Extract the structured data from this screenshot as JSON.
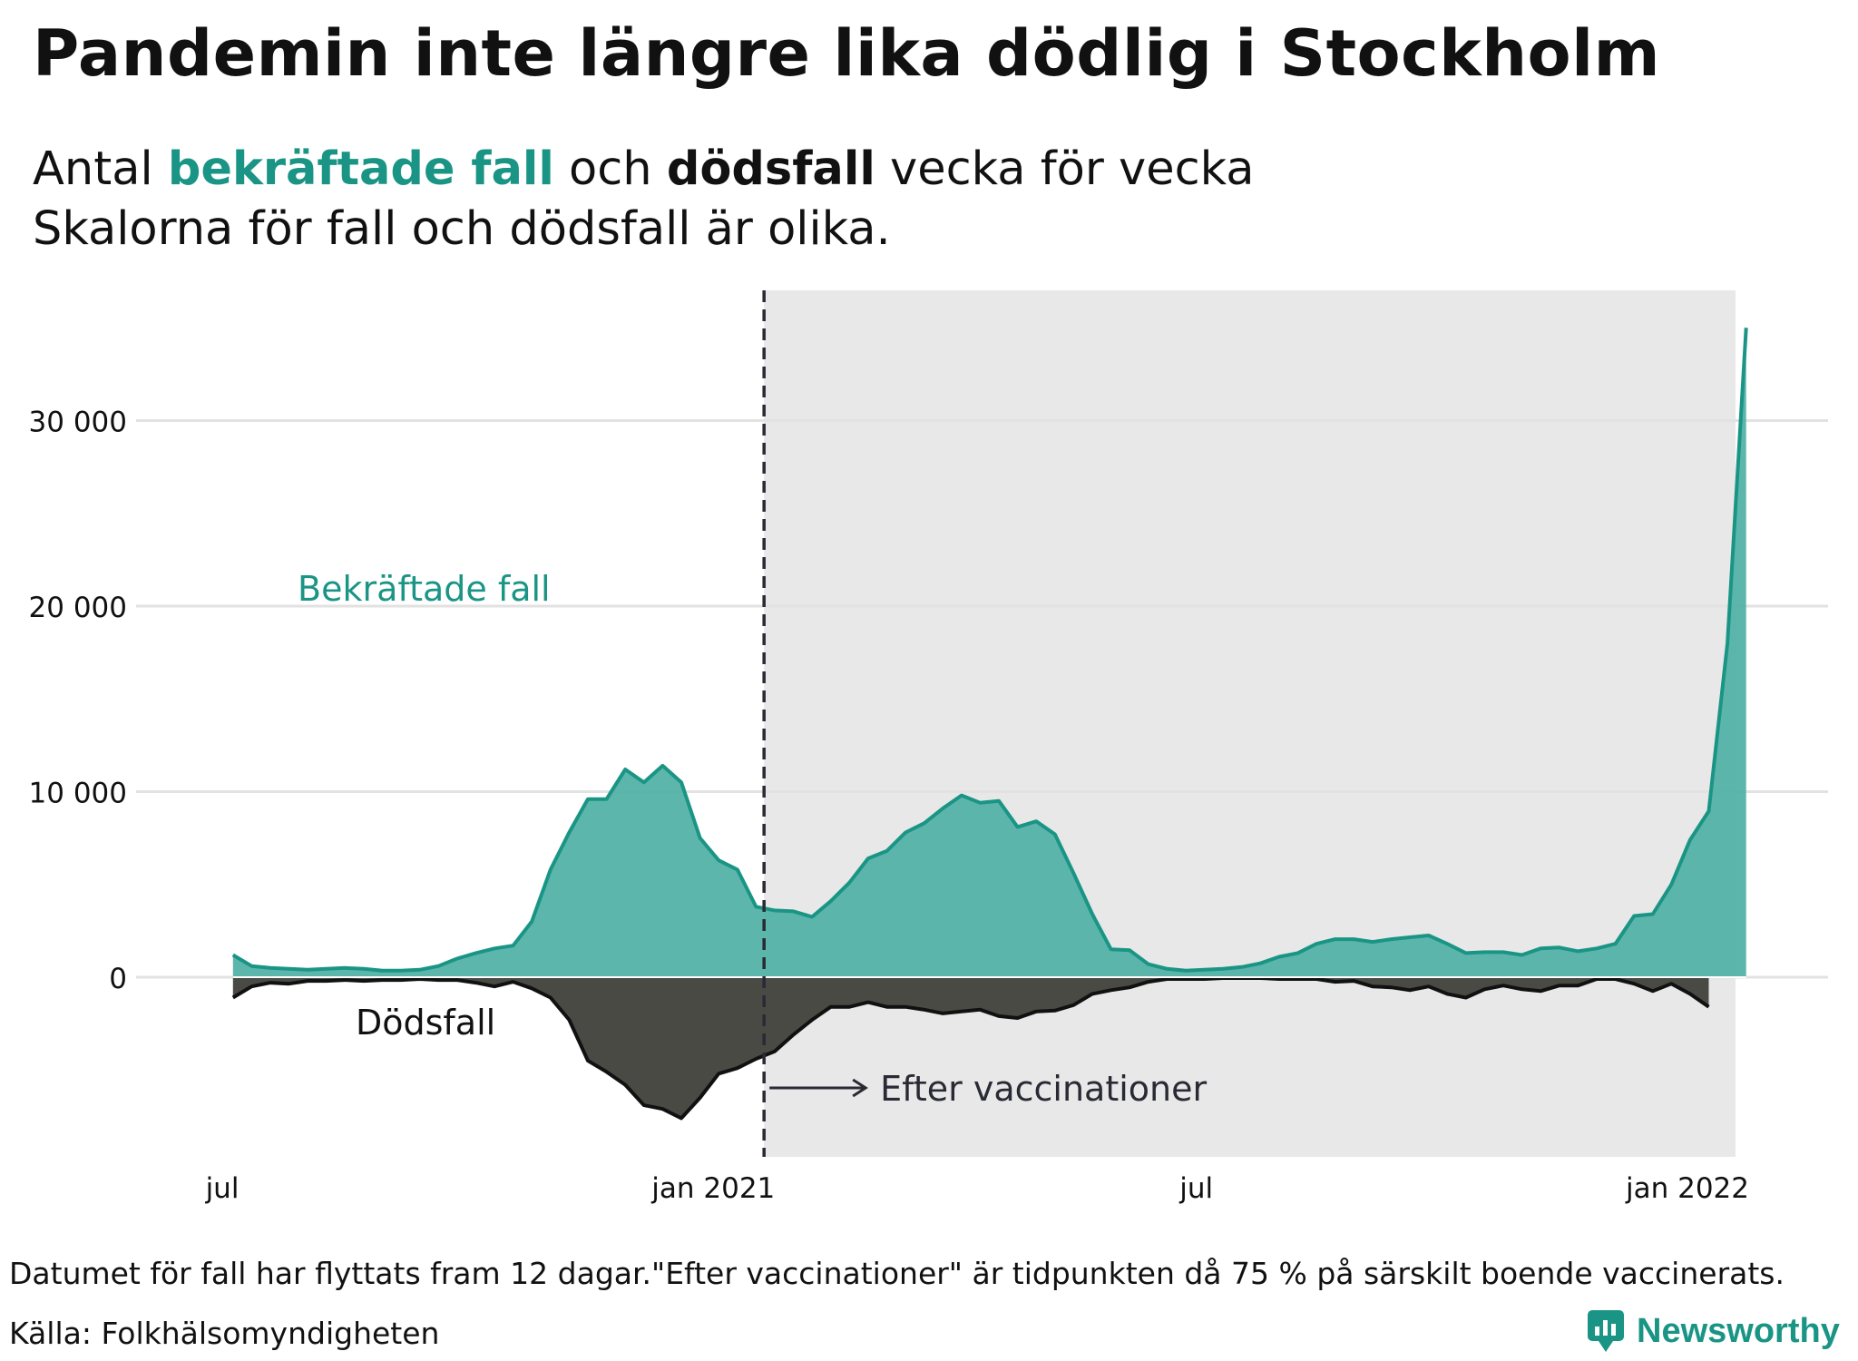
{
  "title": "Pandemin inte längre lika dödlig i Stockholm",
  "subtitle": {
    "part1": "Antal ",
    "cases_term": "bekräftade fall",
    "part2": " och ",
    "deaths_term": "dödsfall",
    "part3": " vecka för vecka",
    "line2": "Skalorna för fall och dödsfall är olika."
  },
  "footer": {
    "note": "Datumet för fall har flyttats fram 12 dagar.\"Efter vaccinationer\" är tidpunkten då 75 % på särskilt boende vaccinerats.",
    "source": "Källa: Folkhälsomyndigheten",
    "brand": "Newsworthy"
  },
  "colors": {
    "cases": "#1a9585",
    "cases_fill": "#4fb0a5",
    "deaths": "#111111",
    "deaths_fill": "#4a4a45",
    "shade": "#e8e8e8",
    "grid": "#e2e2e2"
  },
  "chart_data": {
    "type": "area",
    "x_axis": {
      "ticks": [
        "jul",
        "jan 2021",
        "jul",
        "jan 2022"
      ],
      "tick_dates": [
        "2020-07-01",
        "2021-01-01",
        "2021-07-01",
        "2022-01-01"
      ]
    },
    "y_axis": {
      "tick_labels": [
        "0",
        "10 000",
        "20 000",
        "30 000"
      ],
      "tick_values": [
        0,
        10000,
        20000,
        30000
      ],
      "ylim": [
        -10000,
        37000
      ]
    },
    "grid": true,
    "shaded_region": {
      "start": "2021-01-20",
      "end": "2022-01-19"
    },
    "vline": {
      "date": "2021-01-20",
      "label": "Efter vaccinationer"
    },
    "series": [
      {
        "name": "Bekräftade fall",
        "values": [
          1200,
          600,
          500,
          450,
          400,
          450,
          500,
          450,
          350,
          350,
          400,
          600,
          1000,
          1300,
          1550,
          1700,
          3000,
          5800,
          7800,
          9600,
          9600,
          11200,
          10500,
          11400,
          10500,
          7500,
          6300,
          5800,
          3800,
          3600,
          3550,
          3250,
          4100,
          5100,
          6400,
          6800,
          7800,
          8300,
          9100,
          9800,
          9400,
          9500,
          8100,
          8400,
          7700,
          5600,
          3400,
          1500,
          1450,
          700,
          450,
          350,
          400,
          450,
          550,
          750,
          1100,
          1300,
          1800,
          2050,
          2050,
          1900,
          2050,
          2150,
          2250,
          1800,
          1300,
          1350,
          1350,
          1200,
          1550,
          1600,
          1400,
          1550,
          1800,
          3300,
          3400,
          5000,
          7400,
          8950,
          18000,
          35000
        ]
      },
      {
        "name": "Dödsfall",
        "values": [
          -1100,
          -500,
          -300,
          -350,
          -200,
          -200,
          -150,
          -200,
          -150,
          -150,
          -100,
          -150,
          -150,
          -300,
          -500,
          -250,
          -600,
          -1100,
          -2300,
          -4500,
          -5100,
          -5800,
          -6900,
          -7100,
          -7600,
          -6500,
          -5200,
          -4900,
          -4400,
          -4000,
          -3100,
          -2300,
          -1600,
          -1600,
          -1350,
          -1600,
          -1600,
          -1750,
          -1950,
          -1850,
          -1750,
          -2100,
          -2200,
          -1850,
          -1800,
          -1500,
          -900,
          -700,
          -550,
          -250,
          -100,
          -100,
          -100,
          -50,
          -50,
          -50,
          -100,
          -100,
          -100,
          -250,
          -200,
          -500,
          -550,
          -700,
          -500,
          -900,
          -1100,
          -650,
          -450,
          -650,
          -750,
          -450,
          -450,
          -100,
          -100,
          -350,
          -750,
          -350,
          -900,
          -1600
        ]
      }
    ],
    "labels": {
      "cases": "Bekräftade fall",
      "deaths": "Dödsfall",
      "vline": "Efter vaccinationer"
    }
  }
}
